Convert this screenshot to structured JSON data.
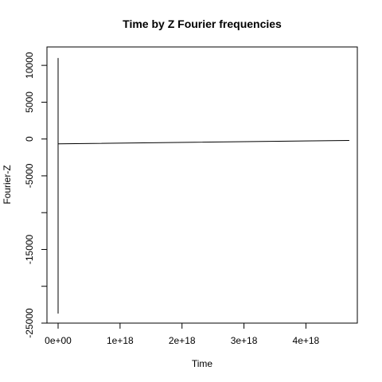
{
  "chart_data": {
    "type": "line",
    "title": "Time by Z Fourier frequencies",
    "xlabel": "Time",
    "ylabel": "Fourier-Z",
    "xlim": [
      -1.8e+17,
      4.83e+18
    ],
    "ylim": [
      -25000,
      12500
    ],
    "x_ticks": [
      {
        "value": 0,
        "label": "0e+00"
      },
      {
        "value": 1e+18,
        "label": "1e+18"
      },
      {
        "value": 2e+18,
        "label": "2e+18"
      },
      {
        "value": 3e+18,
        "label": "3e+18"
      },
      {
        "value": 4e+18,
        "label": "4e+18"
      }
    ],
    "y_ticks": [
      {
        "value": 10000,
        "label": "10000"
      },
      {
        "value": 5000,
        "label": "5000"
      },
      {
        "value": 0,
        "label": "0"
      },
      {
        "value": -5000,
        "label": "-5000"
      },
      {
        "value": -10000,
        "label": ""
      },
      {
        "value": -15000,
        "label": "-15000"
      },
      {
        "value": -20000,
        "label": ""
      },
      {
        "value": -25000,
        "label": "-25000"
      }
    ],
    "series": [
      {
        "color": "#000000",
        "x": [
          0,
          0,
          0,
          4.7e+18
        ],
        "y": [
          11000,
          -23700,
          -650,
          -200
        ]
      }
    ]
  }
}
